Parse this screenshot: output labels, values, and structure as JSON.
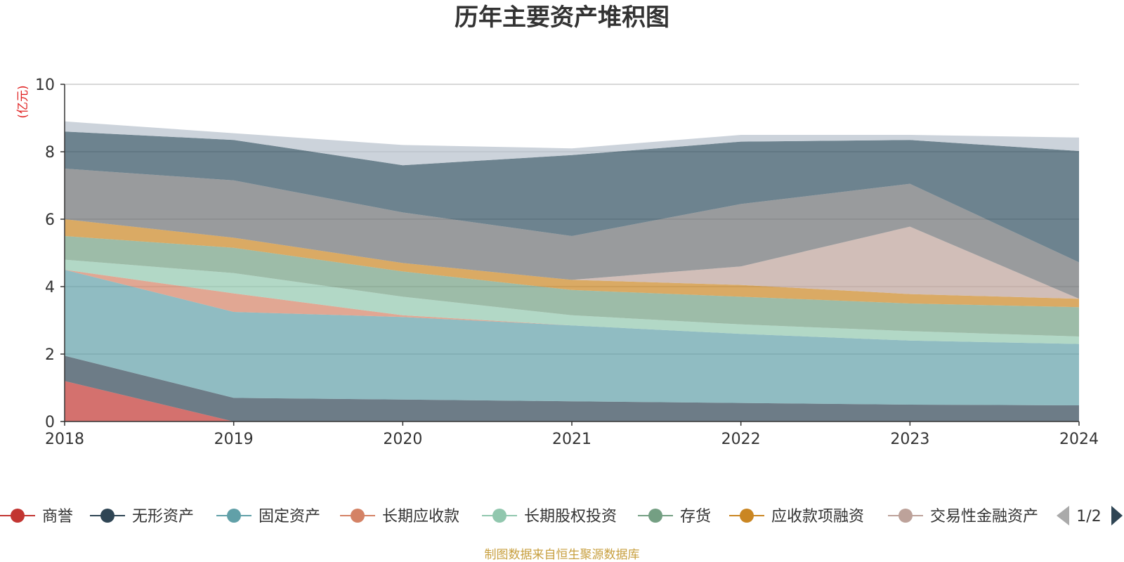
{
  "chart_data": {
    "type": "area",
    "stacked": true,
    "title": "历年主要资产堆积图",
    "ylabel": "亿元",
    "xlabel": "",
    "ylim": [
      0,
      10
    ],
    "yticks": [
      0,
      2,
      4,
      6,
      8,
      10
    ],
    "categories": [
      "2018",
      "2019",
      "2020",
      "2021",
      "2022",
      "2023",
      "2024"
    ],
    "series": [
      {
        "name": "商誉",
        "color": "#c23531",
        "values": [
          1.2,
          0.0,
          0.0,
          0.0,
          0.0,
          0.0,
          0.0
        ]
      },
      {
        "name": "无形资产",
        "color": "#2f4554",
        "values": [
          0.75,
          0.7,
          0.65,
          0.6,
          0.55,
          0.5,
          0.48
        ]
      },
      {
        "name": "固定资产",
        "color": "#61a0a8",
        "values": [
          2.55,
          2.55,
          2.45,
          2.25,
          2.05,
          1.9,
          1.82
        ]
      },
      {
        "name": "长期应收款",
        "color": "#d48265",
        "values": [
          0.0,
          0.55,
          0.05,
          0.0,
          0.0,
          0.0,
          0.0
        ]
      },
      {
        "name": "长期股权投资",
        "color": "#91c7ae",
        "values": [
          0.3,
          0.6,
          0.55,
          0.3,
          0.28,
          0.28,
          0.22
        ]
      },
      {
        "name": "存货",
        "color": "#749f83",
        "values": [
          0.7,
          0.75,
          0.75,
          0.75,
          0.82,
          0.82,
          0.87
        ]
      },
      {
        "name": "应收款项融资",
        "color": "#ca8622",
        "values": [
          0.5,
          0.3,
          0.25,
          0.3,
          0.35,
          0.28,
          0.25
        ]
      },
      {
        "name": "交易性金融资产",
        "color": "#bda29a",
        "values": [
          0.0,
          0.0,
          0.0,
          0.0,
          0.55,
          2.0,
          0.0
        ]
      },
      {
        "name": "",
        "color": "#6e7074",
        "values": [
          1.5,
          1.7,
          1.5,
          1.3,
          1.85,
          1.27,
          1.08
        ]
      },
      {
        "name": "",
        "color": "#2f4f5f",
        "values": [
          1.1,
          1.2,
          1.4,
          2.4,
          1.85,
          1.3,
          3.3
        ]
      },
      {
        "name": "",
        "color": "#b7c1cc",
        "values": [
          0.3,
          0.2,
          0.6,
          0.2,
          0.2,
          0.15,
          0.4
        ]
      }
    ],
    "legend": {
      "position": "bottom",
      "page": "1/2",
      "items": [
        "商誉",
        "无形资产",
        "固定资产",
        "长期应收款",
        "长期股权投资",
        "存货",
        "应收款项融资",
        "交易性金融资产"
      ]
    }
  },
  "footer": {
    "source": "制图数据来自恒生聚源数据库"
  }
}
